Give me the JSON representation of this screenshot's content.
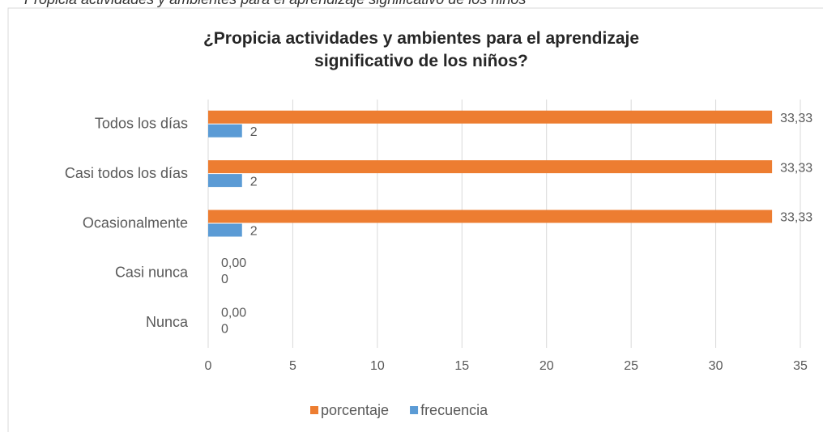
{
  "caption": "Propicia actividades y ambientes para el aprendizaje significativo de los niños",
  "chart_data": {
    "type": "bar",
    "orientation": "horizontal",
    "title": "¿Propicia actividades y ambientes para el aprendizaje significativo de los niños?",
    "categories": [
      "Todos los días",
      "Casi todos los días",
      "Ocasionalmente",
      "Casi nunca",
      "Nunca"
    ],
    "series": [
      {
        "name": "porcentaje",
        "color": "#ed7d31",
        "values": [
          33.33,
          33.33,
          33.33,
          0,
          0
        ],
        "value_labels": [
          "33,33",
          "33,33",
          "33,33",
          "0,00",
          "0,00"
        ]
      },
      {
        "name": "frecuencia",
        "color": "#5b9bd5",
        "values": [
          2,
          2,
          2,
          0,
          0
        ]
      }
    ],
    "xlim": [
      0,
      35
    ],
    "xticks": [
      0,
      5,
      10,
      15,
      20,
      25,
      30,
      35
    ],
    "grid": true,
    "legend": "bottom"
  }
}
